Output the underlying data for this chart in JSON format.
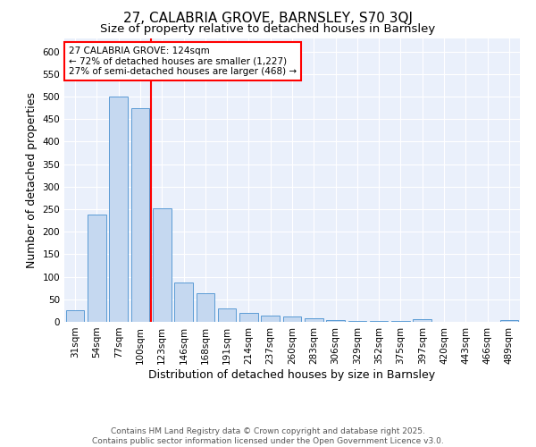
{
  "title": "27, CALABRIA GROVE, BARNSLEY, S70 3QJ",
  "subtitle": "Size of property relative to detached houses in Barnsley",
  "xlabel": "Distribution of detached houses by size in Barnsley",
  "ylabel": "Number of detached properties",
  "bin_labels": [
    "31sqm",
    "54sqm",
    "77sqm",
    "100sqm",
    "123sqm",
    "146sqm",
    "168sqm",
    "191sqm",
    "214sqm",
    "237sqm",
    "260sqm",
    "283sqm",
    "306sqm",
    "329sqm",
    "352sqm",
    "375sqm",
    "397sqm",
    "420sqm",
    "443sqm",
    "466sqm",
    "489sqm"
  ],
  "bar_values": [
    25,
    238,
    500,
    475,
    252,
    88,
    63,
    30,
    20,
    14,
    11,
    8,
    4,
    2,
    2,
    2,
    5,
    0,
    0,
    0,
    4
  ],
  "bar_color": "#c5d8f0",
  "bar_edge_color": "#5b9bd5",
  "property_line_color": "red",
  "annotation_text": "27 CALABRIA GROVE: 124sqm\n← 72% of detached houses are smaller (1,227)\n27% of semi-detached houses are larger (468) →",
  "annotation_box_color": "white",
  "annotation_box_edge_color": "red",
  "ylim": [
    0,
    630
  ],
  "yticks": [
    0,
    50,
    100,
    150,
    200,
    250,
    300,
    350,
    400,
    450,
    500,
    550,
    600
  ],
  "background_color": "#eaf0fb",
  "footer_text": "Contains HM Land Registry data © Crown copyright and database right 2025.\nContains public sector information licensed under the Open Government Licence v3.0.",
  "title_fontsize": 11,
  "subtitle_fontsize": 9.5,
  "axis_label_fontsize": 9,
  "tick_fontsize": 7.5,
  "annotation_fontsize": 7.5,
  "footer_fontsize": 6.5
}
